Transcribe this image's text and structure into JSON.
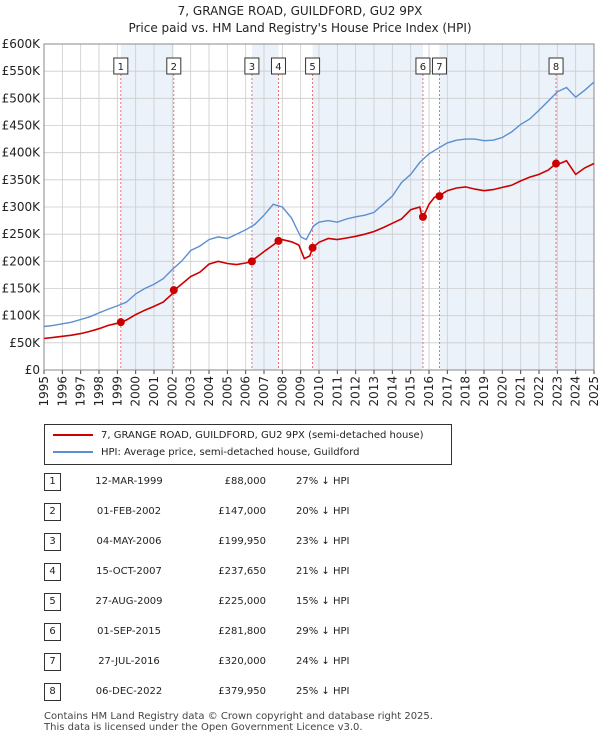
{
  "title_line1": "7, GRANGE ROAD, GUILDFORD, GU2 9PX",
  "title_line2": "Price paid vs. HM Land Registry's House Price Index (HPI)",
  "colors": {
    "price_line": "#cc0000",
    "hpi_line": "#5b8fd0",
    "band": "#dce7f5",
    "marker_line": "#e06666",
    "grid": "#cccccc"
  },
  "legend": {
    "property": "7, GRANGE ROAD, GUILDFORD, GU2 9PX (semi-detached house)",
    "hpi": "HPI: Average price, semi-detached house, Guildford"
  },
  "sales": [
    {
      "num": "1",
      "date": "12-MAR-1999",
      "price": "£88,000",
      "hpi": "27% ↓ HPI"
    },
    {
      "num": "2",
      "date": "01-FEB-2002",
      "price": "£147,000",
      "hpi": "20% ↓ HPI"
    },
    {
      "num": "3",
      "date": "04-MAY-2006",
      "price": "£199,950",
      "hpi": "23% ↓ HPI"
    },
    {
      "num": "4",
      "date": "15-OCT-2007",
      "price": "£237,650",
      "hpi": "21% ↓ HPI"
    },
    {
      "num": "5",
      "date": "27-AUG-2009",
      "price": "£225,000",
      "hpi": "15% ↓ HPI"
    },
    {
      "num": "6",
      "date": "01-SEP-2015",
      "price": "£281,800",
      "hpi": "29% ↓ HPI"
    },
    {
      "num": "7",
      "date": "27-JUL-2016",
      "price": "£320,000",
      "hpi": "24% ↓ HPI"
    },
    {
      "num": "8",
      "date": "06-DEC-2022",
      "price": "£379,950",
      "hpi": "25% ↓ HPI"
    }
  ],
  "footer_line1": "Contains HM Land Registry data © Crown copyright and database right 2025.",
  "footer_line2": "This data is licensed under the Open Government Licence v3.0.",
  "chart_data": {
    "type": "line",
    "title": "7, GRANGE ROAD, GUILDFORD, GU2 9PX — Price paid vs. HM Land Registry's House Price Index (HPI)",
    "xlabel": "",
    "ylabel": "",
    "xlim": [
      1995,
      2025
    ],
    "ylim": [
      0,
      600000
    ],
    "x_ticks": [
      1995,
      1996,
      1997,
      1998,
      1999,
      2000,
      2001,
      2002,
      2003,
      2004,
      2005,
      2006,
      2007,
      2008,
      2009,
      2010,
      2011,
      2012,
      2013,
      2014,
      2015,
      2016,
      2017,
      2018,
      2019,
      2020,
      2021,
      2022,
      2023,
      2024,
      2025
    ],
    "y_ticks": [
      0,
      50000,
      100000,
      150000,
      200000,
      250000,
      300000,
      350000,
      400000,
      450000,
      500000,
      550000,
      600000
    ],
    "y_tick_labels": [
      "£0",
      "£50K",
      "£100K",
      "£150K",
      "£200K",
      "£250K",
      "£300K",
      "£350K",
      "£400K",
      "£450K",
      "£500K",
      "£550K",
      "£600K"
    ],
    "grid": true,
    "series": [
      {
        "name": "HPI: Average price, semi-detached house, Guildford",
        "x": [
          1995.0,
          1995.5,
          1996.0,
          1996.5,
          1997.0,
          1997.5,
          1998.0,
          1998.5,
          1999.0,
          1999.5,
          2000.0,
          2000.5,
          2001.0,
          2001.5,
          2002.0,
          2002.5,
          2003.0,
          2003.5,
          2004.0,
          2004.5,
          2005.0,
          2005.5,
          2006.0,
          2006.5,
          2007.0,
          2007.5,
          2008.0,
          2008.5,
          2009.0,
          2009.3,
          2009.7,
          2010.0,
          2010.5,
          2011.0,
          2011.5,
          2012.0,
          2012.5,
          2013.0,
          2013.5,
          2014.0,
          2014.5,
          2015.0,
          2015.5,
          2016.0,
          2016.5,
          2017.0,
          2017.5,
          2018.0,
          2018.5,
          2019.0,
          2019.5,
          2020.0,
          2020.5,
          2021.0,
          2021.5,
          2022.0,
          2022.5,
          2023.0,
          2023.5,
          2024.0,
          2024.5,
          2025.0
        ],
        "values": [
          80000,
          82000,
          85000,
          88000,
          93000,
          98000,
          105000,
          112000,
          118000,
          125000,
          140000,
          150000,
          158000,
          168000,
          185000,
          200000,
          220000,
          228000,
          240000,
          245000,
          242000,
          250000,
          258000,
          268000,
          285000,
          305000,
          300000,
          280000,
          245000,
          240000,
          265000,
          272000,
          275000,
          272000,
          278000,
          282000,
          285000,
          290000,
          305000,
          320000,
          345000,
          360000,
          382000,
          398000,
          408000,
          418000,
          423000,
          425000,
          425000,
          422000,
          423000,
          428000,
          438000,
          452000,
          462000,
          478000,
          495000,
          512000,
          520000,
          502000,
          515000,
          530000
        ]
      },
      {
        "name": "7, GRANGE ROAD, GUILDFORD, GU2 9PX (semi-detached house)",
        "x": [
          1995.0,
          1995.5,
          1996.0,
          1996.5,
          1997.0,
          1997.5,
          1998.0,
          1998.5,
          1999.0,
          1999.2,
          1999.5,
          2000.0,
          2000.5,
          2001.0,
          2001.5,
          2002.0,
          2002.1,
          2002.5,
          2003.0,
          2003.5,
          2004.0,
          2004.5,
          2005.0,
          2005.5,
          2006.0,
          2006.34,
          2006.5,
          2007.0,
          2007.5,
          2007.79,
          2008.0,
          2008.5,
          2008.9,
          2009.2,
          2009.5,
          2009.65,
          2010.0,
          2010.5,
          2011.0,
          2011.5,
          2012.0,
          2012.5,
          2013.0,
          2013.5,
          2014.0,
          2014.5,
          2015.0,
          2015.5,
          2015.62,
          2015.8,
          2016.0,
          2016.3,
          2016.57,
          2016.8,
          2017.0,
          2017.5,
          2018.0,
          2018.5,
          2019.0,
          2019.5,
          2020.0,
          2020.5,
          2021.0,
          2021.5,
          2022.0,
          2022.5,
          2022.93,
          2023.0,
          2023.5,
          2024.0,
          2024.5,
          2025.0
        ],
        "values": [
          58000,
          60000,
          62000,
          64000,
          67000,
          71000,
          76000,
          82000,
          86000,
          88000,
          92000,
          102000,
          110000,
          117000,
          125000,
          140000,
          147000,
          158000,
          172000,
          180000,
          195000,
          200000,
          196000,
          194000,
          197000,
          199950,
          205000,
          218000,
          230000,
          237650,
          240000,
          236000,
          230000,
          205000,
          210000,
          225000,
          235000,
          242000,
          240000,
          243000,
          246000,
          250000,
          255000,
          262000,
          270000,
          278000,
          295000,
          300000,
          281800,
          290000,
          305000,
          318000,
          320000,
          326000,
          330000,
          335000,
          337000,
          333000,
          330000,
          332000,
          336000,
          340000,
          348000,
          355000,
          360000,
          368000,
          379950,
          378000,
          385000,
          360000,
          372000,
          380000
        ]
      }
    ],
    "sales_markers": [
      {
        "label": "1",
        "x": 1999.19,
        "y": 88000
      },
      {
        "label": "2",
        "x": 2002.08,
        "y": 147000
      },
      {
        "label": "3",
        "x": 2006.34,
        "y": 199950
      },
      {
        "label": "4",
        "x": 2007.79,
        "y": 237650
      },
      {
        "label": "5",
        "x": 2009.65,
        "y": 225000
      },
      {
        "label": "6",
        "x": 2015.67,
        "y": 281800
      },
      {
        "label": "7",
        "x": 2016.57,
        "y": 320000
      },
      {
        "label": "8",
        "x": 2022.93,
        "y": 379950
      }
    ]
  }
}
